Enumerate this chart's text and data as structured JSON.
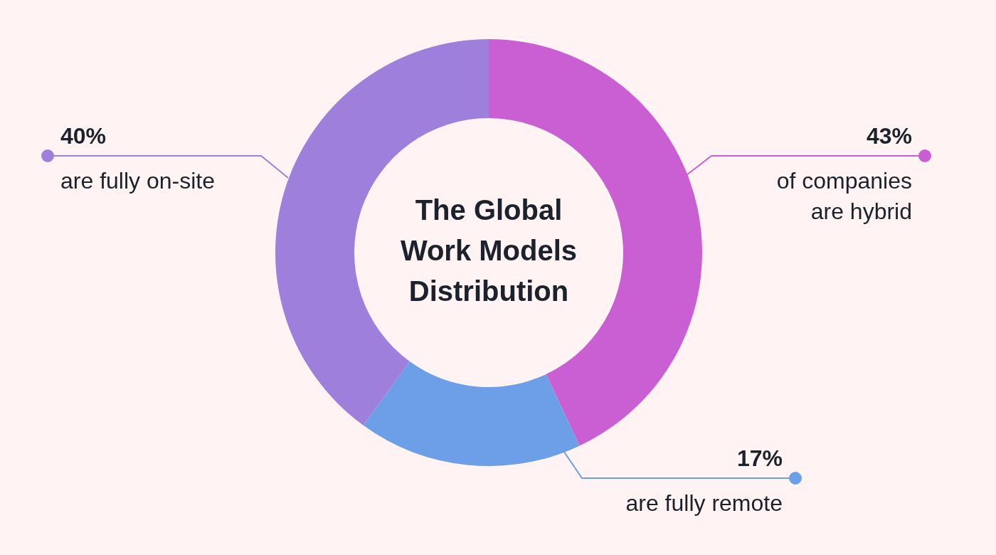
{
  "chart_data": {
    "type": "donut",
    "title": "The Global Work Models Distribution",
    "categories": [
      "of companies are hybrid",
      "are fully remote",
      "are fully on-site"
    ],
    "values": [
      43,
      17,
      40
    ],
    "value_labels": [
      "43%",
      "17%",
      "40%"
    ],
    "colors": [
      "#c95fd3",
      "#6c9fe8",
      "#9f7fdc"
    ],
    "legend": "right"
  }
}
